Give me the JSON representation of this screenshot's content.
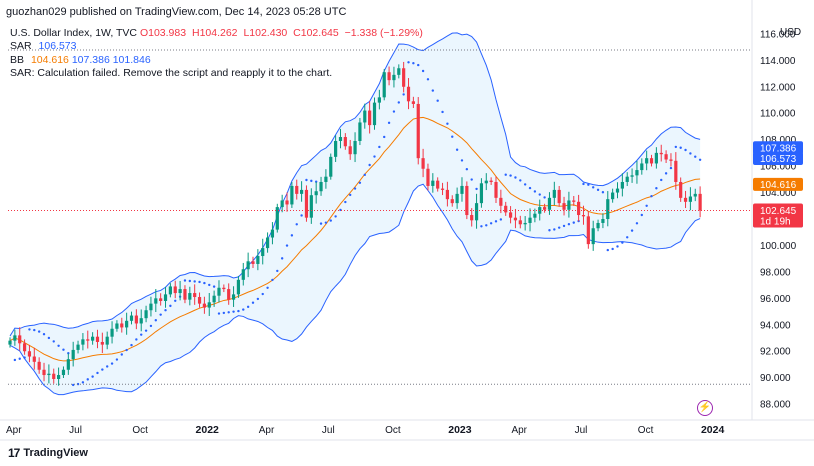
{
  "header": {
    "text": "guozhan029 published on TradingView.com, Dec 14, 2023 05:28 UTC"
  },
  "legend": {
    "symbol": "U.S. Dollar Index, 1W, TVC",
    "ohlc": {
      "o": "O103.983",
      "h": "H104.262",
      "l": "L102.430",
      "c": "C102.645",
      "chg": "−1.338 (−1.29%)"
    },
    "sar_label": "SAR",
    "sar_value": "106.573",
    "bb_label": "BB",
    "bb_mid": "104.616",
    "bb_upper": "107.386",
    "bb_lower": "101.846",
    "sar_message": "SAR: Calculation failed. Remove the script and reapply it to the chart."
  },
  "footer": {
    "brand": "TradingView",
    "logo": "17"
  },
  "colors": {
    "up": "#089981",
    "down": "#f23645",
    "sar": "#2962ff",
    "bb_band": "#2962ff",
    "bb_mid": "#f57c00",
    "bb_fill": "#e3f2fd",
    "price_line": "#f23645"
  },
  "chart_data": {
    "type": "candlestick",
    "currency": "USD",
    "ylim": [
      86.8,
      117.2
    ],
    "y_ticks": [
      "116.000",
      "114.000",
      "112.000",
      "110.000",
      "108.000",
      "106.000",
      "104.000",
      "102.000",
      "100.000",
      "98.000",
      "96.000",
      "94.000",
      "92.000",
      "90.000",
      "88.000"
    ],
    "x_ticks": [
      {
        "label": "Apr",
        "t": 0,
        "bold": false
      },
      {
        "label": "Jul",
        "t": 13,
        "bold": false
      },
      {
        "label": "Oct",
        "t": 26,
        "bold": false
      },
      {
        "label": "2022",
        "t": 39,
        "bold": true
      },
      {
        "label": "Apr",
        "t": 52,
        "bold": false
      },
      {
        "label": "Jul",
        "t": 65,
        "bold": false
      },
      {
        "label": "Oct",
        "t": 78,
        "bold": false
      },
      {
        "label": "2023",
        "t": 91,
        "bold": true
      },
      {
        "label": "Apr",
        "t": 104,
        "bold": false
      },
      {
        "label": "Jul",
        "t": 117,
        "bold": false
      },
      {
        "label": "Oct",
        "t": 130,
        "bold": false
      },
      {
        "label": "2024",
        "t": 143,
        "bold": true
      }
    ],
    "closes": [
      92.8,
      93.2,
      92.6,
      92.0,
      91.6,
      91.2,
      90.6,
      90.2,
      90.3,
      89.9,
      90.2,
      90.6,
      91.4,
      92.1,
      92.5,
      92.9,
      92.8,
      93.1,
      92.7,
      92.5,
      93.1,
      93.7,
      94.1,
      93.8,
      94.3,
      94.7,
      94.1,
      94.5,
      95.1,
      95.6,
      96.0,
      95.8,
      96.3,
      96.9,
      96.4,
      96.7,
      95.9,
      96.4,
      96.1,
      95.6,
      95.3,
      95.7,
      96.2,
      96.8,
      96.7,
      95.9,
      96.3,
      97.4,
      98.2,
      98.8,
      98.6,
      99.2,
      99.8,
      100.6,
      101.2,
      102.9,
      103.4,
      103.1,
      104.5,
      103.9,
      104.2,
      102.1,
      103.8,
      104.1,
      104.8,
      105.2,
      106.7,
      107.9,
      108.2,
      107.5,
      106.9,
      107.9,
      109.3,
      110.2,
      109.1,
      110.8,
      111.2,
      113.1,
      112.5,
      112.9,
      113.4,
      112.0,
      110.9,
      110.7,
      106.6,
      105.8,
      104.5,
      104.9,
      104.3,
      104.2,
      103.5,
      103.2,
      103.9,
      104.5,
      102.3,
      101.9,
      103.2,
      104.7,
      104.9,
      104.8,
      103.6,
      103.0,
      102.5,
      102.1,
      101.9,
      101.6,
      101.7,
      102.1,
      102.4,
      102.9,
      102.7,
      103.6,
      104.2,
      103.2,
      102.7,
      103.4,
      103.3,
      102.3,
      102.2,
      100.1,
      101.3,
      101.7,
      102.0,
      103.5,
      104.0,
      104.3,
      104.8,
      105.2,
      105.3,
      105.7,
      106.2,
      106.6,
      106.2,
      107.0,
      106.9,
      106.5,
      106.4,
      104.8,
      103.6,
      103.3,
      103.7,
      103.9,
      102.645
    ],
    "last_price": "102.645",
    "countdown": "1d 19h",
    "price_labels": [
      {
        "value": 107.386,
        "text": "107.386",
        "color": "#2962ff"
      },
      {
        "value": 106.573,
        "text": "106.573",
        "color": "#2962ff"
      },
      {
        "value": 104.616,
        "text": "104.616",
        "color": "#f57c00"
      },
      {
        "value": 101.846,
        "text": "101.846",
        "color": "#2962ff"
      }
    ],
    "high_line": 114.78,
    "low_line": 89.5
  }
}
